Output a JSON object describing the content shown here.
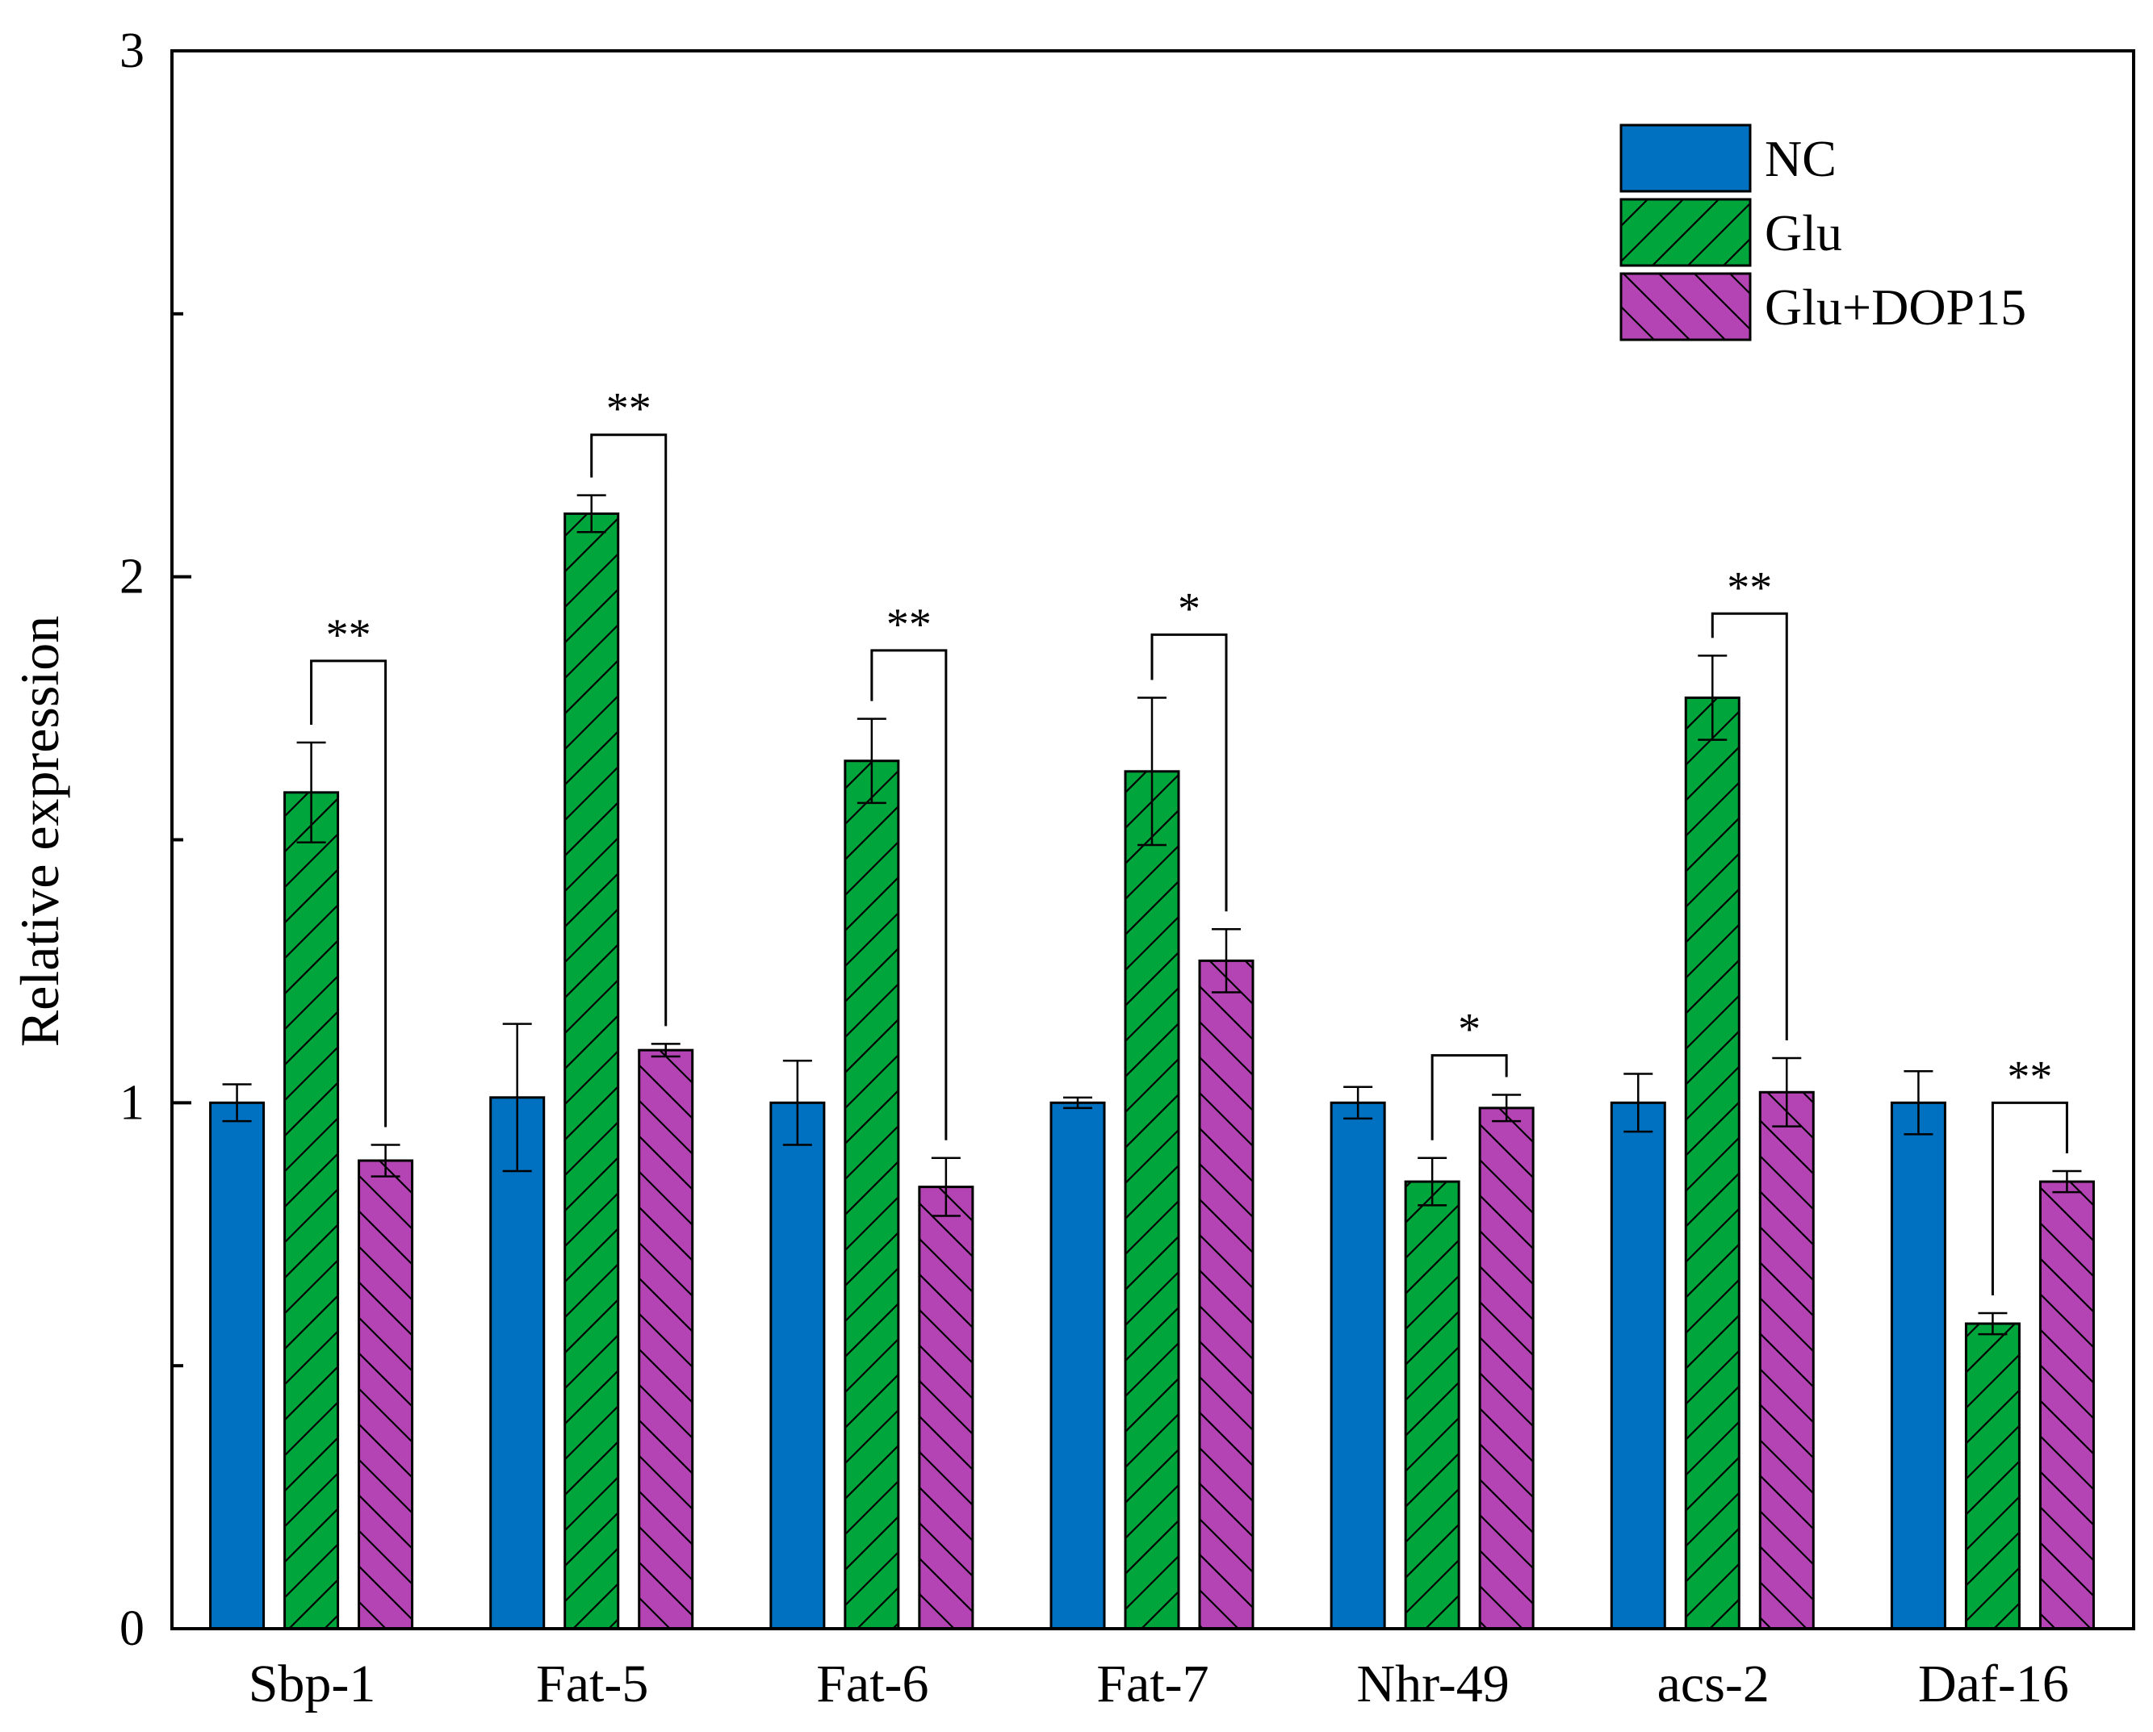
{
  "chart_data": {
    "type": "bar",
    "title": "",
    "xlabel": "",
    "ylabel": "Relative expression",
    "ylim": [
      0,
      3
    ],
    "yticks": [
      0,
      1,
      2,
      3
    ],
    "ytick_labels": [
      "0",
      "1",
      "2",
      "3"
    ],
    "categories": [
      "Sbp-1",
      "Fat-5",
      "Fat-6",
      "Fat-7",
      "Nhr-49",
      "acs-2",
      "Daf-16"
    ],
    "series": [
      {
        "name": "NC",
        "color": "#0070c0",
        "pattern": "solid",
        "values": [
          1.0,
          1.01,
          1.0,
          1.0,
          1.0,
          1.0,
          1.0
        ],
        "errors": [
          0.035,
          0.14,
          0.08,
          0.01,
          0.03,
          0.055,
          0.06
        ]
      },
      {
        "name": "Glu",
        "color": "#00a63c",
        "pattern": "forward-hatch",
        "values": [
          1.59,
          2.12,
          1.65,
          1.63,
          0.85,
          1.77,
          0.58
        ],
        "errors": [
          0.095,
          0.035,
          0.08,
          0.14,
          0.045,
          0.08,
          0.02
        ]
      },
      {
        "name": "Glu+DOP15",
        "color": "#b444b4",
        "pattern": "back-hatch",
        "values": [
          0.89,
          1.1,
          0.84,
          1.27,
          0.99,
          1.02,
          0.85
        ],
        "errors": [
          0.03,
          0.012,
          0.055,
          0.06,
          0.025,
          0.065,
          0.02
        ]
      }
    ],
    "significance": [
      {
        "category": "Sbp-1",
        "label": "**",
        "level": 1.84
      },
      {
        "category": "Fat-5",
        "label": "**",
        "level": 2.27
      },
      {
        "category": "Fat-6",
        "label": "**",
        "level": 1.86
      },
      {
        "category": "Fat-7",
        "label": "*",
        "level": 1.89
      },
      {
        "category": "Nhr-49",
        "label": "*",
        "level": 1.09
      },
      {
        "category": "acs-2",
        "label": "**",
        "level": 1.93
      },
      {
        "category": "Daf-16",
        "label": "**",
        "level": 1.0
      }
    ],
    "legend_position": "top-right",
    "grid": false
  }
}
